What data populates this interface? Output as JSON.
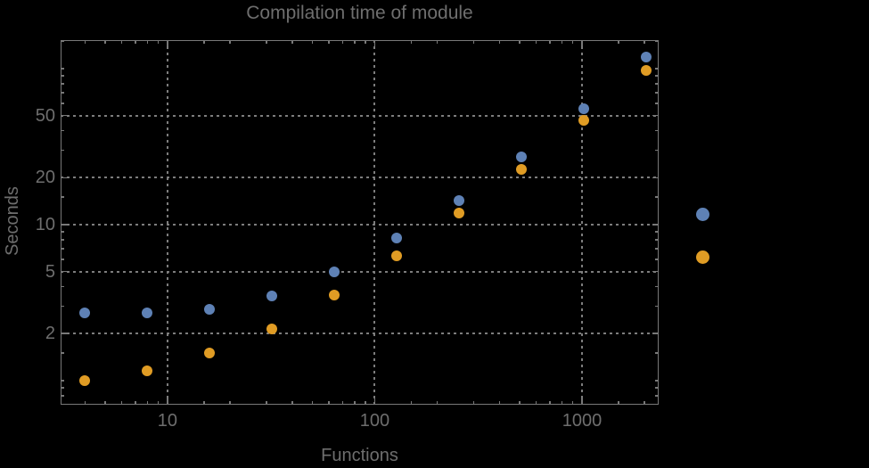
{
  "colors": {
    "background": "#000000",
    "text": "#6e6e6e",
    "frame": "#787878",
    "gridlines": "#7d7d7d"
  },
  "chart_data": {
    "type": "scatter",
    "title": "Compilation time of module",
    "xlabel": "Functions",
    "ylabel": "Seconds",
    "x_scale": "log",
    "y_scale": "log",
    "xlim": [
      3.05,
      2344
    ],
    "ylim": [
      0.7,
      152.4
    ],
    "grid": "dotted gray lines at labeled major ticks, frame on all four sides with inward ticks",
    "x": [
      4,
      8,
      16,
      32,
      64,
      128,
      256,
      512,
      1024,
      2048
    ],
    "series": [
      {
        "name": "series-1-blue",
        "color": "#5E81B5",
        "marker": "circle",
        "values": [
          2.7,
          2.7,
          2.85,
          3.5,
          5.0,
          8.2,
          14.3,
          27,
          55,
          118
        ]
      },
      {
        "name": "series-2-orange",
        "color": "#E09C24",
        "marker": "circle",
        "values": [
          1.0,
          1.15,
          1.5,
          2.15,
          3.55,
          6.3,
          11.9,
          22.5,
          46.5,
          98
        ]
      }
    ],
    "x_ticks": [
      {
        "value": 10,
        "label": "10"
      },
      {
        "value": 100,
        "label": "100"
      },
      {
        "value": 1000,
        "label": "1000"
      }
    ],
    "y_ticks": [
      {
        "value": 2,
        "label": "2"
      },
      {
        "value": 5,
        "label": "5"
      },
      {
        "value": 10,
        "label": "10"
      },
      {
        "value": 20,
        "label": "20"
      },
      {
        "value": 50,
        "label": "50"
      }
    ],
    "legend": {
      "position": "right of plot frame",
      "markers": [
        {
          "series": "series-1-blue",
          "color": "#5E81B5"
        },
        {
          "series": "series-2-orange",
          "color": "#E09C24"
        }
      ]
    }
  }
}
